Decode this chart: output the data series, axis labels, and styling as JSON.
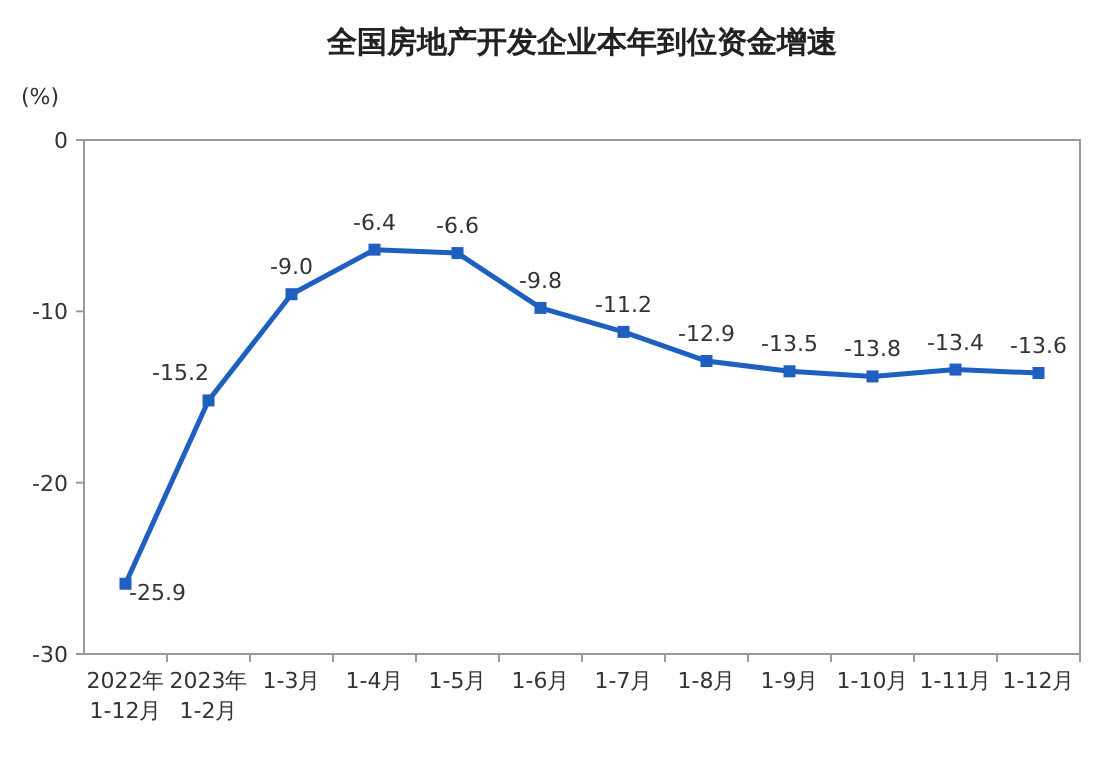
{
  "chart_data": {
    "type": "line",
    "title": "全国房地产开发企业本年到位资金增速",
    "ylabel": "(%)",
    "categories": [
      "2022年\n1-12月",
      "2023年\n1-2月",
      "1-3月",
      "1-4月",
      "1-5月",
      "1-6月",
      "1-7月",
      "1-8月",
      "1-9月",
      "1-10月",
      "1-11月",
      "1-12月"
    ],
    "series": [
      {
        "color": "#1f5fbf",
        "values": [
          -25.9,
          -15.2,
          -9.0,
          -6.4,
          -6.6,
          -9.8,
          -11.2,
          -12.9,
          -13.5,
          -13.8,
          -13.4,
          -13.6
        ],
        "value_labels": [
          "-25.9",
          "-15.2",
          "-9.0",
          "-6.4",
          "-6.6",
          "-9.8",
          "-11.2",
          "-12.9",
          "-13.5",
          "-13.8",
          "-13.4",
          "-13.6"
        ]
      }
    ],
    "ylim": [
      -30,
      0
    ],
    "yticks": [
      -30,
      -20,
      -10,
      0
    ],
    "marker": "square",
    "line_style": "solid"
  }
}
